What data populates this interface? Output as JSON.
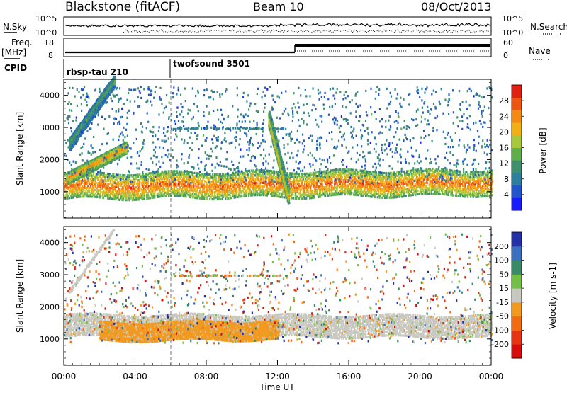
{
  "header": {
    "station": "Blackstone (fitACF)",
    "beam": "Beam 10",
    "date": "08/Oct/2013"
  },
  "status_panels": {
    "nsky": {
      "label": "N.Sky",
      "tick_top": "10^5",
      "tick_bottom": "10^0"
    },
    "nsearch": {
      "label": "N.Search",
      "tick_top": "10^5",
      "tick_bottom": "10^0"
    },
    "freq": {
      "label_line1": "Freq.",
      "label_line2": "[MHz]",
      "tick_top": "18",
      "tick_bottom": "8"
    },
    "nave": {
      "label": "Nave",
      "tick_top": "60",
      "tick_bottom": "0"
    },
    "cpid": {
      "label": "CPID"
    }
  },
  "modes": [
    {
      "name": "rbsp-tau 210",
      "start_hour": 0,
      "end_hour": 6
    },
    {
      "name": "twofsound 3501",
      "start_hour": 6,
      "end_hour": 24
    }
  ],
  "chart_data": [
    {
      "type": "heatmap",
      "panel": "power",
      "ylabel": "Slant Range [km]",
      "ylim": [
        180,
        4500
      ],
      "yticks": [
        1000,
        2000,
        3000,
        4000
      ],
      "colorbar_label": "Power [dB]",
      "colorbar_range": [
        0,
        32
      ],
      "colorbar_ticks": [
        "4",
        "8",
        "12",
        "16",
        "20",
        "24",
        "28"
      ],
      "colors": [
        "#1a1aff",
        "#2255cc",
        "#2e7f9e",
        "#3e8f6e",
        "#5fae4c",
        "#a7c83b",
        "#f0b015",
        "#f58a12",
        "#ee5510",
        "#e02010"
      ],
      "features": [
        {
          "name": "main-band",
          "start": [
            0,
            1200
          ],
          "end": [
            24,
            1320
          ],
          "width_km": 380,
          "power_db": 25
        },
        {
          "name": "rising-band",
          "start": [
            0.2,
            1450
          ],
          "end": [
            3.5,
            2400
          ],
          "width_km": 160,
          "power_db": 22
        },
        {
          "name": "upper-arc",
          "start": [
            0.3,
            2500
          ],
          "end": [
            2.8,
            4450
          ],
          "width_km": 160,
          "power_db": 12
        },
        {
          "name": "noon-spike",
          "start": [
            11.5,
            3300
          ],
          "end": [
            12.6,
            900
          ],
          "width_km": 200,
          "power_db": 20
        }
      ]
    },
    {
      "type": "heatmap",
      "panel": "velocity",
      "ylabel": "Slant Range [km]",
      "ylim": [
        180,
        4500
      ],
      "yticks": [
        1000,
        2000,
        3000,
        4000
      ],
      "colorbar_label": "Velocity [m s-1]",
      "colorbar_range": [
        -250,
        250
      ],
      "colorbar_ticks": [
        "200",
        "100",
        "50",
        "15",
        "-15",
        "-50",
        "-100",
        "-200"
      ],
      "colors": [
        "#2430a8",
        "#3d6fbf",
        "#3a8a68",
        "#74c045",
        "#c8c8c0",
        "#f29a20",
        "#f26a12",
        "#e53412",
        "#d80c0c"
      ],
      "features": [
        {
          "name": "ground-scatter-band",
          "start": [
            0,
            1450
          ],
          "end": [
            24,
            1420
          ],
          "width_km": 350,
          "velocity": 0
        },
        {
          "name": "evening-band",
          "start": [
            2,
            1250
          ],
          "end": [
            12,
            1300
          ],
          "width_km": 300,
          "velocity": -50
        }
      ]
    }
  ],
  "xaxis": {
    "label": "Time UT",
    "xlim": [
      0,
      24
    ],
    "ticks": [
      "00:00",
      "04:00",
      "08:00",
      "12:00",
      "16:00",
      "20:00",
      "00:00"
    ]
  },
  "colors": {
    "frame": "#000000",
    "background": "#ffffff"
  }
}
